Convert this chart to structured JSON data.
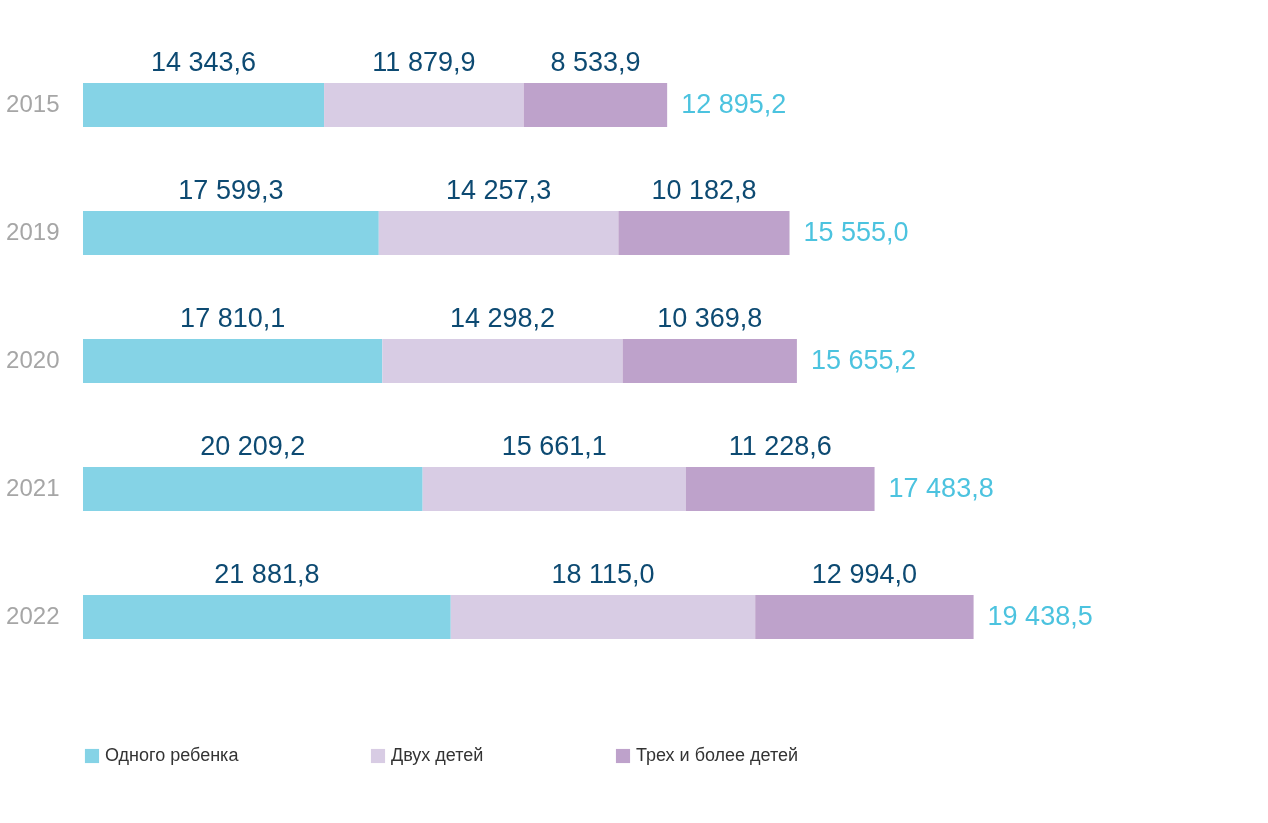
{
  "chart_data": {
    "type": "bar",
    "orientation": "horizontal",
    "stacked": true,
    "categories": [
      "2015",
      "2019",
      "2020",
      "2021",
      "2022"
    ],
    "series": [
      {
        "name": "Одного ребенка",
        "color": "#85d3e6",
        "values": [
          14343.6,
          17599.3,
          17810.1,
          20209.2,
          21881.8
        ],
        "value_labels": [
          "14 343,6",
          "17 599,3",
          "17 810,1",
          "20 209,2",
          "21 881,8"
        ]
      },
      {
        "name": "Двух детей",
        "color": "#d8cce4",
        "values": [
          11879.9,
          14257.3,
          14298.2,
          15661.1,
          18115.0
        ],
        "value_labels": [
          "11 879,9",
          "14 257,3",
          "14 298,2",
          "15 661,1",
          "18 115,0"
        ]
      },
      {
        "name": "Трех и более детей",
        "color": "#bea2cb",
        "values": [
          8533.9,
          10182.8,
          10369.8,
          11228.6,
          12994.0
        ],
        "value_labels": [
          "8 533,9",
          "10 182,8",
          "10 369,8",
          "11 228,6",
          "12 994,0"
        ]
      }
    ],
    "annotations": [
      {
        "text": "12 895,2",
        "x": 34757.4,
        "y": "2015"
      },
      {
        "text": "15 555,0",
        "x": 42039.4,
        "y": "2019"
      },
      {
        "text": "15 655,2",
        "x": 42478.1,
        "y": "2020"
      },
      {
        "text": "17 483,8",
        "x": 47098.9,
        "y": "2021"
      },
      {
        "text": "19 438,5",
        "x": 52990.8,
        "y": "2022"
      }
    ],
    "xlim": [
      0,
      62000
    ],
    "tick_labels": "y",
    "grid": false,
    "legend": "bottom"
  }
}
